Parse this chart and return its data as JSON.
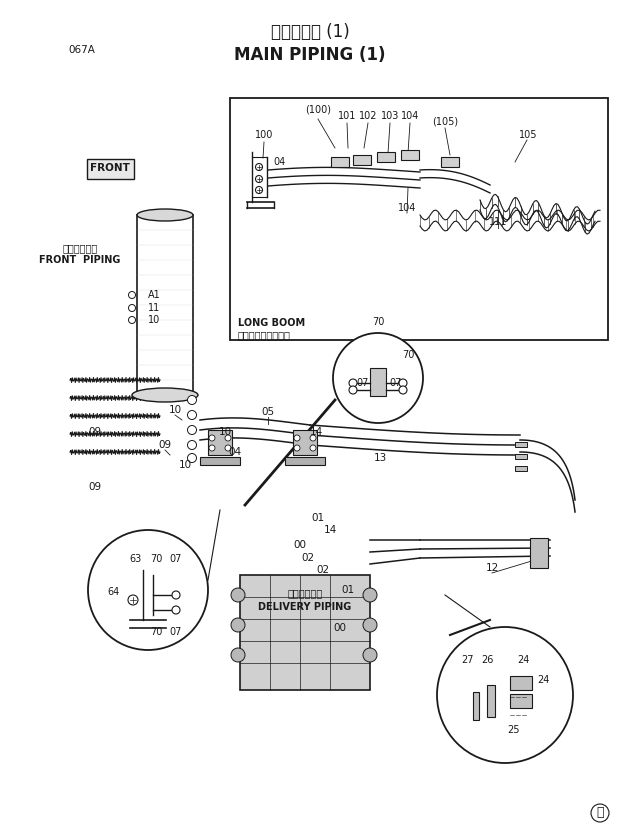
{
  "title_japanese": "メイン配管 (1)",
  "title_english": "MAIN PIPING (1)",
  "page_code": "067A",
  "background_color": "#f5f5f0",
  "line_color": "#1a1a1a",
  "text_color": "#1a1a1a",
  "inset_label_japanese": "ロングブーム装置時",
  "inset_label_english": "LONG BOOM",
  "front_label": "FRONT",
  "front_piping_japanese": "フロント配管",
  "front_piping_english": "FRONT  PIPING",
  "delivery_piping_japanese": "デリベリ配管",
  "delivery_piping_english": "DELIVERY PIPING",
  "copyright": "Ⓜ"
}
